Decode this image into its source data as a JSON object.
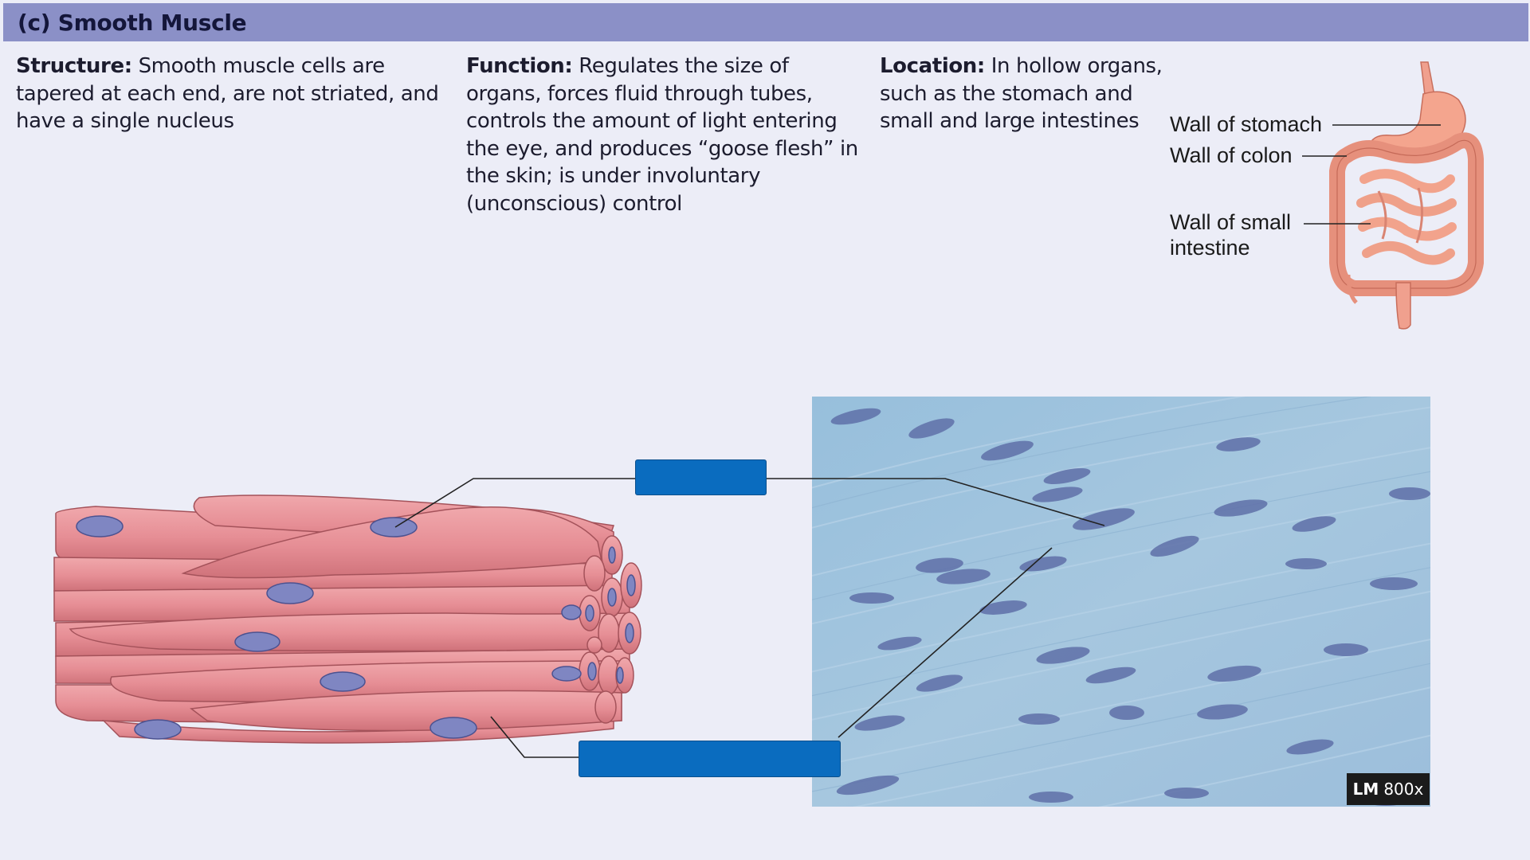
{
  "header": {
    "title": "(c) Smooth Muscle"
  },
  "structure": {
    "label": "Structure:",
    "text": "Smooth muscle cells are tapered at each end, are not striated, and have a single nucleus"
  },
  "function": {
    "label": "Function:",
    "text": "Regulates the size of organs, forces fluid through tubes, controls the amount of light entering the eye, and produces “goose flesh” in the skin; is under involuntary (unconscious) control"
  },
  "location": {
    "label": "Location:",
    "text": "In hollow organs, such as the stomach and small and large intestines"
  },
  "organ_labels": {
    "stomach": "Wall of stomach",
    "colon": "Wall of colon",
    "small_intestine": "Wall of small intestine"
  },
  "micrograph": {
    "badge_bold": "LM",
    "badge_text": "800x"
  },
  "colors": {
    "header": "#8b90c7",
    "panel": "#ecedf7",
    "muscle": "#e8949a",
    "nucleus": "#7f86c2",
    "label_box": "#0a6cbf",
    "micrograph": "#9ec3dc"
  }
}
